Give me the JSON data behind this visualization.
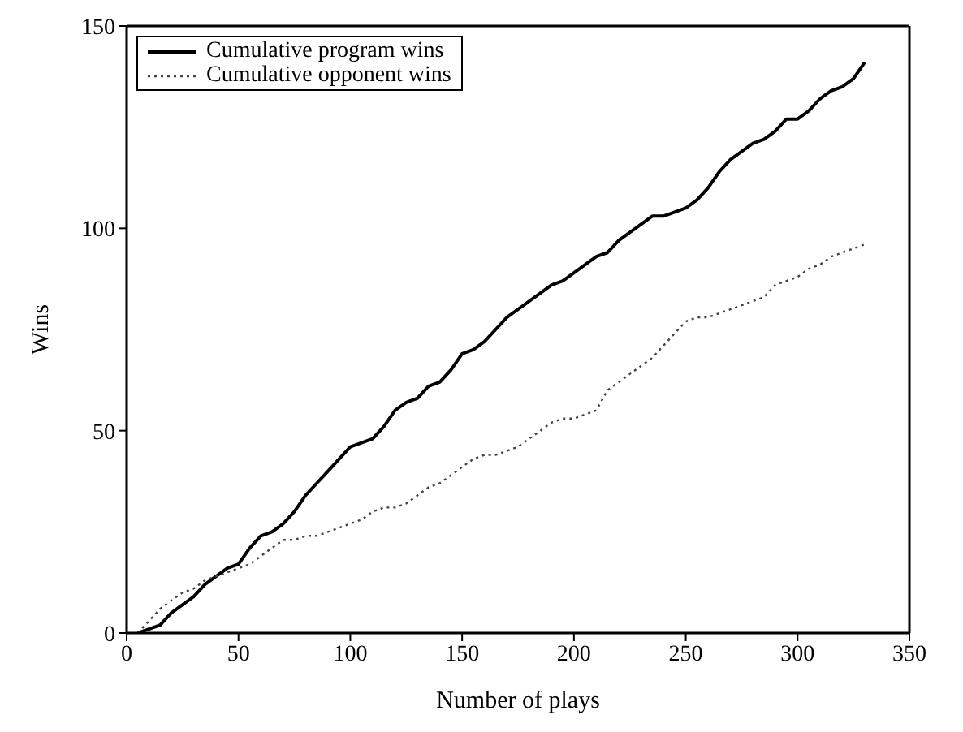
{
  "chart_data": {
    "type": "line",
    "xlabel": "Number of plays",
    "ylabel": "Wins",
    "xlim": [
      0,
      350
    ],
    "xticks": [
      0,
      50,
      100,
      150,
      200,
      250,
      300,
      350
    ],
    "ylim": [
      0,
      150
    ],
    "yticks": [
      0,
      50,
      100,
      150
    ],
    "legend": "top left",
    "marker": "none",
    "x": [
      5,
      10,
      15,
      20,
      25,
      30,
      35,
      40,
      45,
      50,
      55,
      60,
      65,
      70,
      75,
      80,
      85,
      90,
      95,
      100,
      105,
      110,
      115,
      120,
      125,
      130,
      135,
      140,
      145,
      150,
      155,
      160,
      165,
      170,
      175,
      180,
      185,
      190,
      195,
      200,
      205,
      210,
      215,
      220,
      225,
      230,
      235,
      240,
      245,
      250,
      255,
      260,
      265,
      270,
      275,
      280,
      285,
      290,
      295,
      300,
      305,
      310,
      315,
      320,
      325,
      330
    ],
    "series": [
      {
        "name": "Cumulative program wins",
        "color": "#000000",
        "line_style": "solid",
        "values": [
          0,
          1,
          2,
          5,
          7,
          9,
          12,
          14,
          16,
          17,
          21,
          24,
          25,
          27,
          30,
          34,
          37,
          40,
          43,
          46,
          47,
          48,
          51,
          55,
          57,
          58,
          61,
          62,
          65,
          69,
          70,
          72,
          75,
          78,
          80,
          82,
          84,
          86,
          87,
          89,
          91,
          93,
          94,
          97,
          99,
          101,
          103,
          103,
          104,
          105,
          107,
          110,
          114,
          117,
          119,
          121,
          122,
          124,
          127,
          127,
          129,
          132,
          134,
          135,
          137,
          141
        ]
      },
      {
        "name": "Cumulative opponent wins",
        "color": "#444444",
        "line_style": "dotted",
        "values": [
          0,
          3,
          6,
          8,
          10,
          11,
          13,
          14,
          15,
          16,
          17,
          19,
          21,
          23,
          23,
          24,
          24,
          25,
          26,
          27,
          28,
          30,
          31,
          31,
          32,
          34,
          36,
          37,
          39,
          41,
          43,
          44,
          44,
          45,
          46,
          48,
          50,
          52,
          53,
          53,
          54,
          55,
          60,
          62,
          64,
          66,
          68,
          71,
          74,
          77,
          78,
          78,
          79,
          80,
          81,
          82,
          83,
          86,
          87,
          88,
          90,
          91,
          93,
          94,
          95,
          96
        ]
      }
    ]
  }
}
